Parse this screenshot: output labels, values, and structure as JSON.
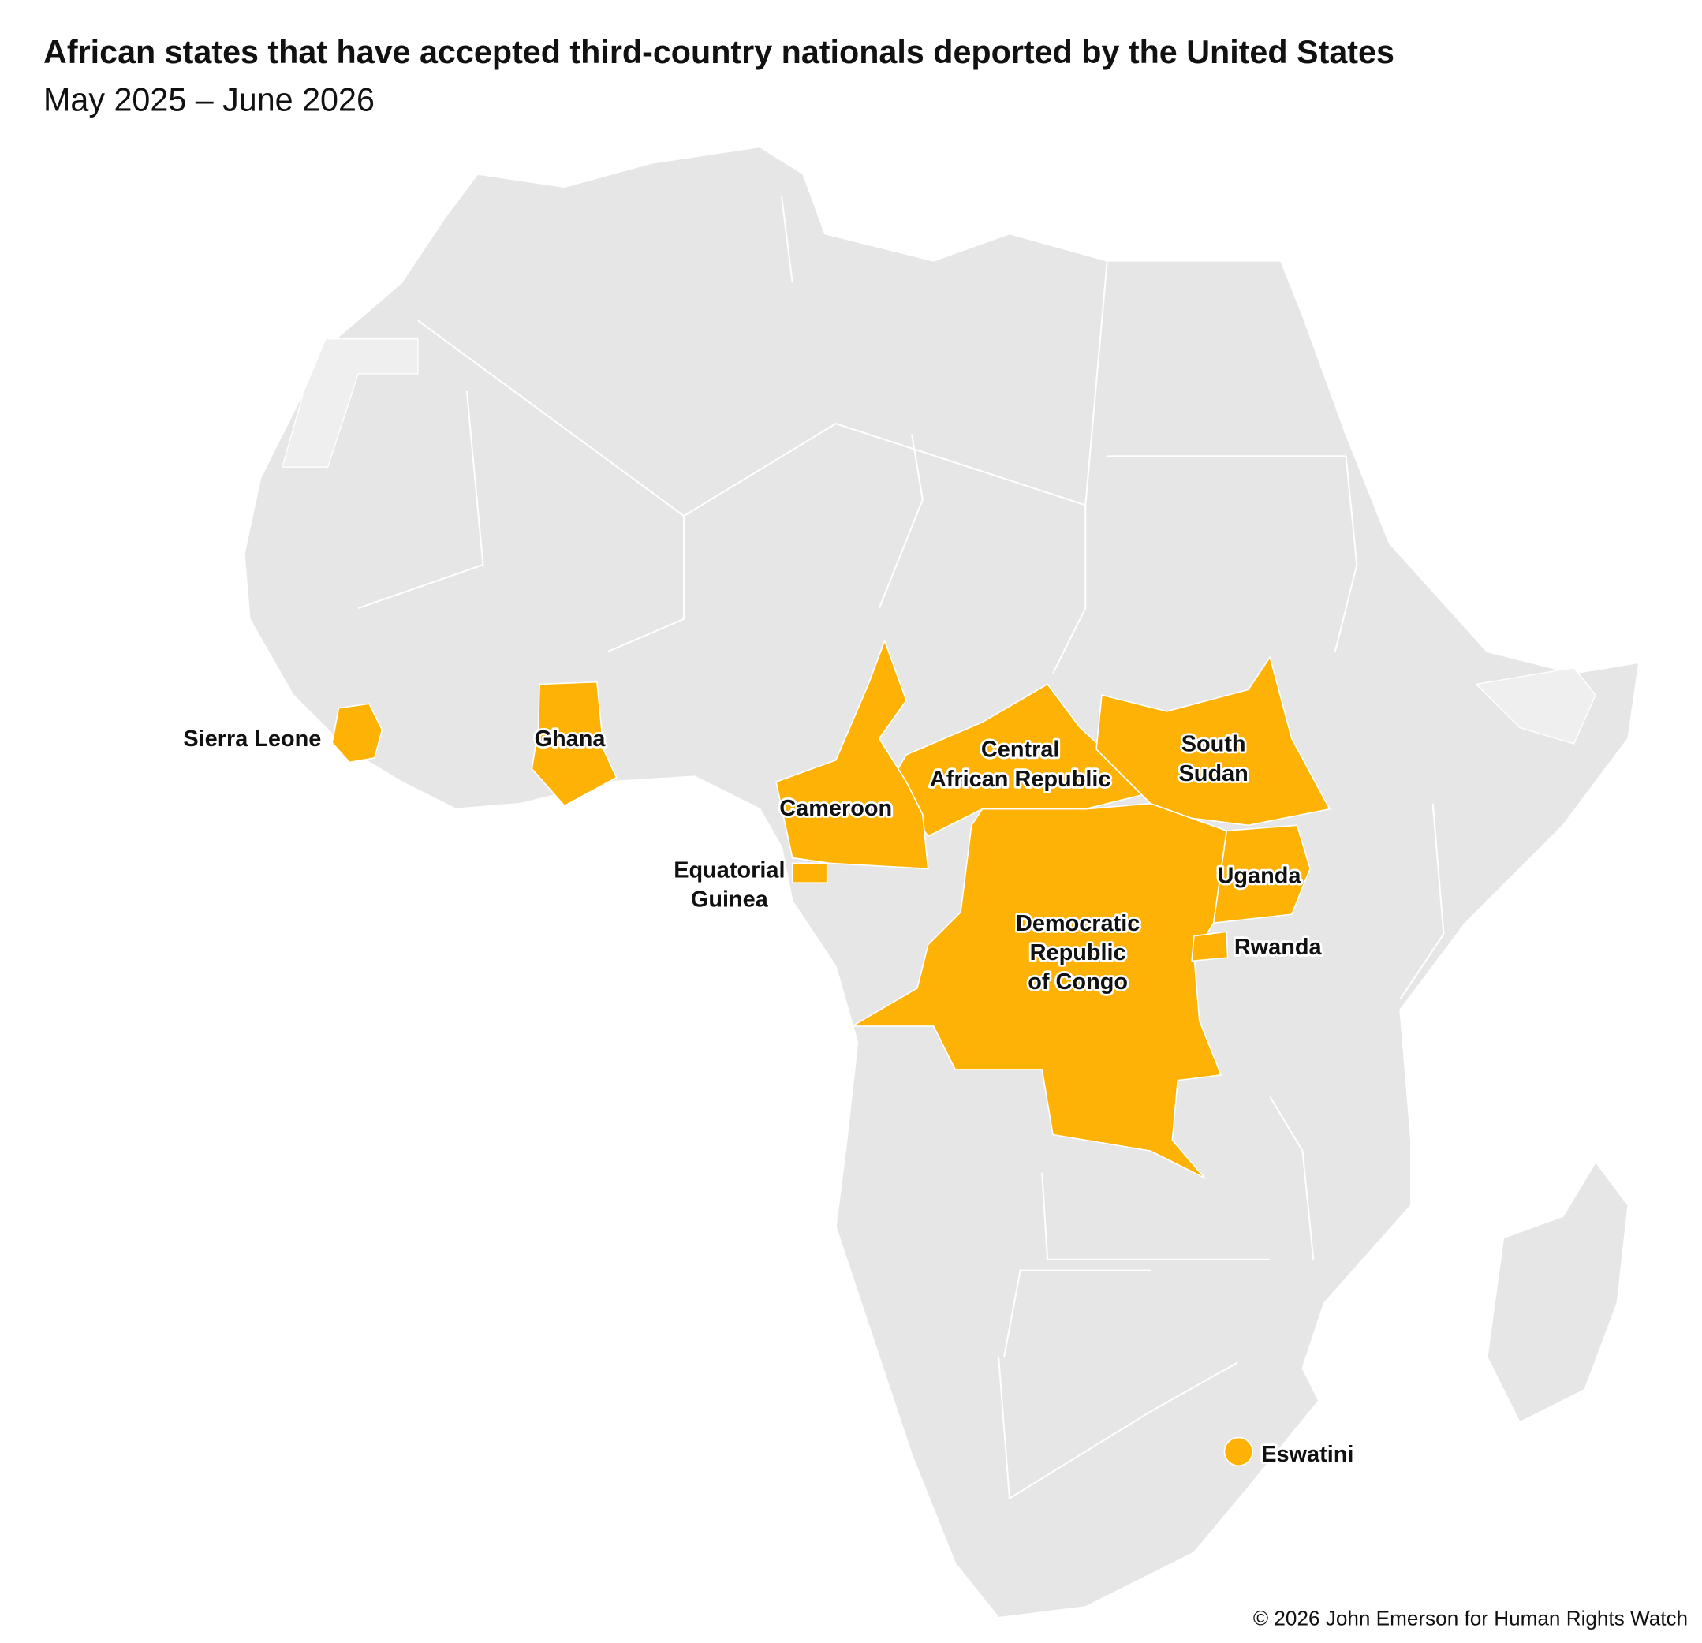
{
  "title": "African states that have accepted third-country nationals deported by the United States",
  "subtitle": "May 2025 – June 2026",
  "highlight_color": "#fdb205",
  "countries": [
    {
      "label": [
        "Sierra Leone"
      ]
    },
    {
      "label": [
        "Ghana"
      ]
    },
    {
      "label": [
        "Central",
        "African Republic"
      ]
    },
    {
      "label": [
        "South",
        "Sudan"
      ]
    },
    {
      "label": [
        "Cameroon"
      ]
    },
    {
      "label": [
        "Equatorial",
        "Guinea"
      ]
    },
    {
      "label": [
        "Uganda"
      ]
    },
    {
      "label": [
        "Democratic",
        "Republic",
        "of Congo"
      ]
    },
    {
      "label": [
        "Rwanda"
      ]
    },
    {
      "label": [
        "Eswatini"
      ]
    }
  ],
  "credit": "© 2026 John Emerson for Human Rights Watch"
}
